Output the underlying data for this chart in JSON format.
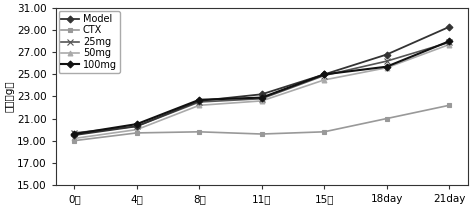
{
  "x_positions": [
    0,
    1,
    2,
    3,
    4,
    5,
    6
  ],
  "x_labels": [
    "0天",
    "4天",
    "8天",
    "11天",
    "15天",
    "18day",
    "21day"
  ],
  "series": {
    "Model": {
      "values": [
        19.5,
        20.3,
        22.6,
        23.2,
        25.0,
        26.8,
        29.3
      ],
      "color": "#333333",
      "marker": "D",
      "linewidth": 1.3,
      "markersize": 3.5,
      "zorder": 5
    },
    "CTX": {
      "values": [
        19.0,
        19.7,
        19.8,
        19.6,
        19.8,
        21.0,
        22.2
      ],
      "color": "#999999",
      "marker": "s",
      "linewidth": 1.2,
      "markersize": 3.5,
      "zorder": 3
    },
    "25mg": {
      "values": [
        19.7,
        20.3,
        22.5,
        22.8,
        24.9,
        26.2,
        27.9
      ],
      "color": "#555555",
      "marker": "x",
      "linewidth": 1.2,
      "markersize": 4,
      "zorder": 4
    },
    "50mg": {
      "values": [
        19.2,
        20.0,
        22.2,
        22.6,
        24.5,
        25.6,
        27.7
      ],
      "color": "#aaaaaa",
      "marker": "^",
      "linewidth": 1.2,
      "markersize": 3.5,
      "zorder": 2
    },
    "100mg": {
      "values": [
        19.6,
        20.5,
        22.7,
        22.9,
        25.0,
        25.7,
        28.0
      ],
      "color": "#111111",
      "marker": "D",
      "linewidth": 1.5,
      "markersize": 3.5,
      "zorder": 6
    }
  },
  "ylim": [
    15.0,
    31.0
  ],
  "yticks": [
    15.0,
    17.0,
    19.0,
    21.0,
    23.0,
    25.0,
    27.0,
    29.0,
    31.0
  ],
  "ylabel": "体重（g）",
  "legend_order": [
    "Model",
    "CTX",
    "25mg",
    "50mg",
    "100mg"
  ],
  "background_color": "#ffffff",
  "font_size": 7.5
}
